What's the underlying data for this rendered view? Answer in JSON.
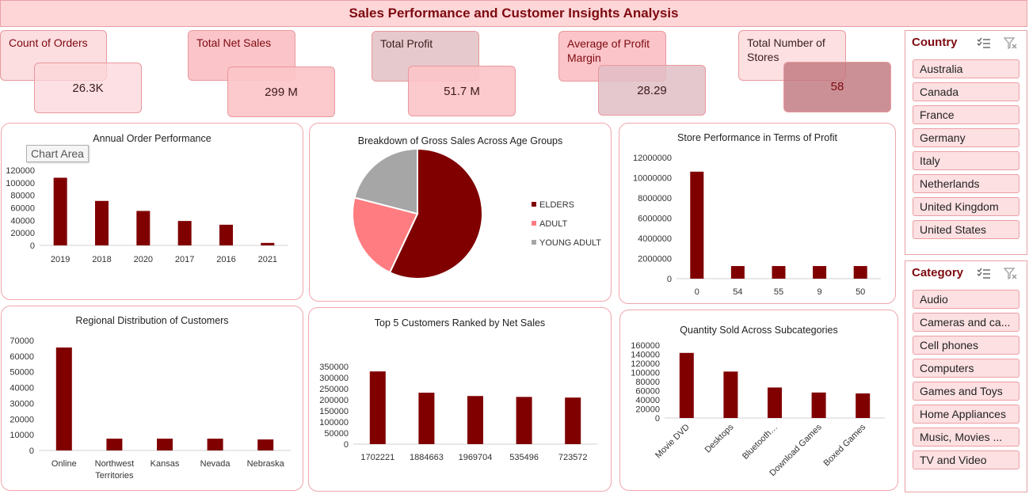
{
  "dashboard": {
    "title": "Sales Performance and Customer Insights Analysis"
  },
  "kpis": {
    "orders": {
      "label": "Count of Orders",
      "value": "26.3K"
    },
    "net_sales": {
      "label": "Total Net Sales",
      "value": "299 M"
    },
    "profit": {
      "label": "Total Profit",
      "value": "51.7 M"
    },
    "margin": {
      "label": "Average of Profit Margin",
      "value": "28.29"
    },
    "stores": {
      "label": "Total Number of Stores",
      "value": "58"
    }
  },
  "tooltip": {
    "text": "Chart Area"
  },
  "colors": {
    "bar": "#800000",
    "elders": "#800000",
    "adult": "#ff7c80",
    "young_adult": "#a6a6a6",
    "accent": "#7d0a10"
  },
  "chart_data": [
    {
      "id": "annual",
      "type": "bar",
      "title": "Annual Order Performance",
      "categories": [
        "2019",
        "2018",
        "2020",
        "2017",
        "2016",
        "2021"
      ],
      "values": [
        108000,
        71000,
        55000,
        39000,
        33000,
        4000
      ],
      "ylim": [
        0,
        120000
      ],
      "yticks": [
        0,
        20000,
        40000,
        60000,
        80000,
        100000,
        120000
      ]
    },
    {
      "id": "age",
      "type": "pie",
      "title": "Breakdown of Gross Sales Across Age Groups",
      "labels": [
        "ELDERS",
        "ADULT",
        "YOUNG ADULT"
      ],
      "values": [
        57,
        22,
        21
      ],
      "legend": "right"
    },
    {
      "id": "stores",
      "type": "bar",
      "title": "Store Performance in Terms of Profit",
      "categories": [
        "0",
        "54",
        "55",
        "9",
        "50"
      ],
      "values": [
        10600000,
        1250000,
        1250000,
        1250000,
        1250000
      ],
      "ylim": [
        0,
        12000000
      ],
      "yticks": [
        0,
        2000000,
        4000000,
        6000000,
        8000000,
        10000000,
        12000000
      ]
    },
    {
      "id": "region",
      "type": "bar",
      "title": "Regional Distribution of Customers",
      "categories": [
        "Online",
        "Northwest Territories",
        "Kansas",
        "Nevada",
        "Nebraska"
      ],
      "values": [
        65500,
        7500,
        7500,
        7500,
        7000
      ],
      "ylim": [
        0,
        70000
      ],
      "yticks": [
        0,
        10000,
        20000,
        30000,
        40000,
        50000,
        60000,
        70000
      ]
    },
    {
      "id": "customers",
      "type": "bar",
      "title": "Top 5 Customers Ranked by Net Sales",
      "categories": [
        "1702221",
        "1884663",
        "1969704",
        "535496",
        "723572"
      ],
      "values": [
        328000,
        232000,
        217000,
        213000,
        210000
      ],
      "ylim": [
        0,
        350000
      ],
      "yticks": [
        0,
        50000,
        100000,
        150000,
        200000,
        250000,
        300000,
        350000
      ]
    },
    {
      "id": "subcat",
      "type": "bar",
      "title": "Quantity Sold Across Subcategories",
      "categories": [
        "Movie DVD",
        "Desktops",
        "Bluetooth…",
        "Download Games",
        "Boxed Games"
      ],
      "values": [
        143000,
        102000,
        67000,
        56000,
        54000
      ],
      "ylim": [
        0,
        160000
      ],
      "yticks": [
        0,
        20000,
        40000,
        60000,
        80000,
        100000,
        120000,
        140000,
        160000
      ],
      "xlabel_rotate": true
    }
  ],
  "slicers": {
    "country": {
      "title": "Country",
      "items": [
        "Australia",
        "Canada",
        "France",
        "Germany",
        "Italy",
        "Netherlands",
        "United Kingdom",
        "United States"
      ]
    },
    "category": {
      "title": "Category",
      "items": [
        "Audio",
        "Cameras and ca...",
        "Cell phones",
        "Computers",
        "Games and Toys",
        "Home Appliances",
        "Music, Movies ...",
        "TV and Video"
      ]
    }
  },
  "icons": {
    "multiselect": "multi-select-icon",
    "clear": "clear-filter-icon"
  }
}
